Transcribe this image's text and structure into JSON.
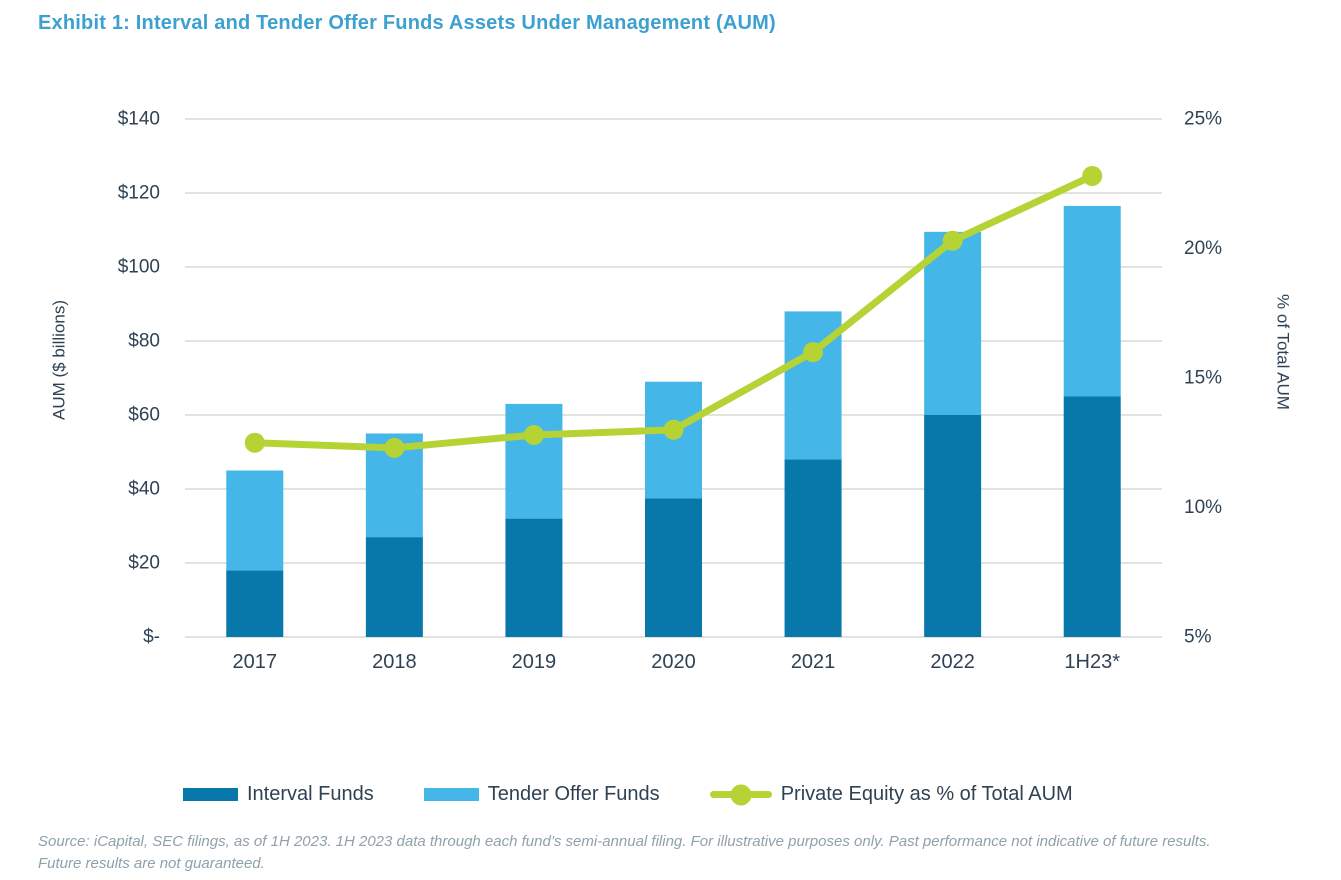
{
  "page": {
    "title": "Exhibit 1: Interval and Tender Offer Funds Assets Under Management (AUM)"
  },
  "colors": {
    "title_blue": "#3ca0d0",
    "interval_dark_blue": "#0878ab",
    "tender_light_blue": "#45b6e8",
    "pe_line_green": "#b5d334",
    "axis_text_navy": "#2f4254",
    "gridline_gray": "#d8d8d4",
    "source_text_gray": "#8fa1ab"
  },
  "chart_data": {
    "type": "combo",
    "title": "Exhibit 1: Interval and Tender Offer Funds Assets Under Management (AUM)",
    "categories": [
      "2017",
      "2018",
      "2019",
      "2020",
      "2021",
      "2022",
      "1H23*"
    ],
    "series": [
      {
        "name": "Interval Funds",
        "type": "bar",
        "stack": "aum",
        "axis": "left",
        "color": "#0878ab",
        "values": [
          18,
          27,
          32,
          37.5,
          48,
          60,
          65
        ]
      },
      {
        "name": "Tender Offer Funds",
        "type": "bar",
        "stack": "aum",
        "axis": "left",
        "color": "#45b6e8",
        "values": [
          27,
          28,
          31,
          31.5,
          40,
          49.5,
          51.5
        ]
      },
      {
        "name": "Private Equity as % of Total AUM",
        "type": "line",
        "axis": "right",
        "color": "#b5d334",
        "values": [
          12.5,
          12.3,
          12.8,
          13.0,
          16.0,
          20.3,
          22.8
        ]
      }
    ],
    "stack_totals": [
      45,
      55,
      63,
      69,
      88,
      109.5,
      116.5
    ],
    "left_axis": {
      "title": "AUM ($ billions)",
      "min": 0,
      "max": 140,
      "tick_step": 20,
      "tick_labels": [
        "$140",
        "$120",
        "$100",
        "$80",
        "$60",
        "$40",
        "$20",
        "$-"
      ]
    },
    "right_axis": {
      "title": "% of Total AUM",
      "min": 5,
      "max": 25,
      "tick_step": 5,
      "tick_labels": [
        "25%",
        "20%",
        "15%",
        "10%",
        "5%"
      ]
    },
    "grid": "horizontal",
    "legend_position": "bottom"
  },
  "source": {
    "line1": "Source: iCapital, SEC filings, as of 1H 2023. 1H 2023 data through each fund’s semi-annual filing. For illustrative purposes only. Past performance not indicative of future results.",
    "line2": "Future results are not guaranteed."
  }
}
